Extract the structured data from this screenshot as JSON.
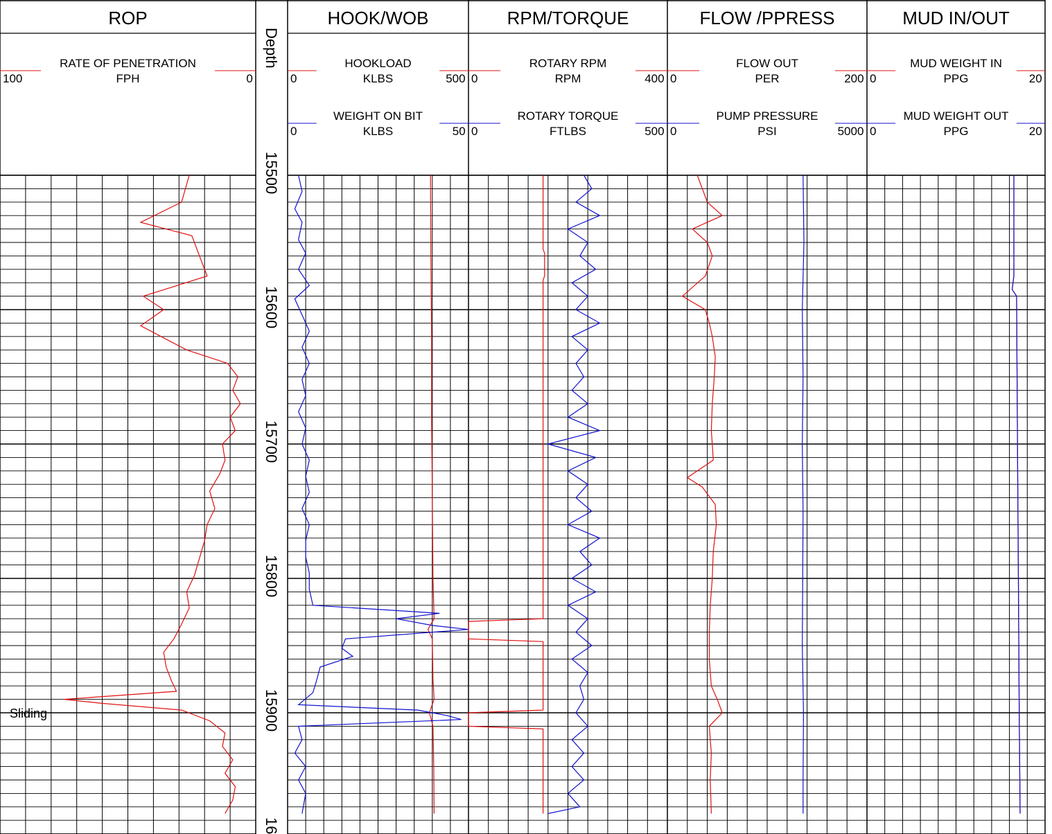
{
  "tracks": [
    {
      "title": "ROP",
      "curves": [
        {
          "name": "RATE OF PENETRATION",
          "unit": "FPH",
          "left": "100",
          "right": "0",
          "color": "#e01010"
        }
      ]
    },
    {
      "title": "HOOK/WOB",
      "curves": [
        {
          "name": "HOOKLOAD",
          "unit": "KLBS",
          "left": "0",
          "right": "500",
          "color": "#e01010"
        },
        {
          "name": "WEIGHT ON BIT",
          "unit": "KLBS",
          "left": "0",
          "right": "50",
          "color": "#1010d0"
        }
      ]
    },
    {
      "title": "RPM/TORQUE",
      "curves": [
        {
          "name": "ROTARY RPM",
          "unit": "RPM",
          "left": "0",
          "right": "400",
          "color": "#e01010"
        },
        {
          "name": "ROTARY TORQUE",
          "unit": "FTLBS",
          "left": "0",
          "right": "500",
          "color": "#1010d0"
        }
      ]
    },
    {
      "title": "FLOW /PPRESS",
      "curves": [
        {
          "name": "FLOW OUT",
          "unit": "PER",
          "left": "0",
          "right": "200",
          "color": "#e01010"
        },
        {
          "name": "PUMP PRESSURE",
          "unit": "PSI",
          "left": "0",
          "right": "5000",
          "color": "#1010d0"
        }
      ]
    },
    {
      "title": "MUD IN/OUT",
      "curves": [
        {
          "name": "MUD WEIGHT IN",
          "unit": "PPG",
          "left": "0",
          "right": "20",
          "color": "#e01010"
        },
        {
          "name": "MUD WEIGHT OUT",
          "unit": "PPG",
          "left": "0",
          "right": "20",
          "color": "#1010d0"
        }
      ]
    }
  ],
  "depth_track": {
    "title": "Depth",
    "labels": [
      "15500",
      "15600",
      "15700",
      "15800",
      "15900",
      "16"
    ]
  },
  "annotation": "Sliding",
  "chart_data": {
    "type": "line",
    "depth_axis": {
      "label": "Depth",
      "range": [
        15500,
        15975
      ],
      "major_step": 100,
      "ticks": [
        15500,
        15600,
        15700,
        15800,
        15900
      ]
    },
    "grid": true,
    "series": [
      {
        "name": "RATE OF PENETRATION",
        "unit": "FPH",
        "scale": [
          100,
          0
        ],
        "points": [
          [
            15500,
            26
          ],
          [
            15520,
            29
          ],
          [
            15535,
            45
          ],
          [
            15545,
            25
          ],
          [
            15560,
            22
          ],
          [
            15575,
            19
          ],
          [
            15590,
            44
          ],
          [
            15600,
            36
          ],
          [
            15612,
            45
          ],
          [
            15622,
            35
          ],
          [
            15630,
            27
          ],
          [
            15640,
            11
          ],
          [
            15650,
            7
          ],
          [
            15660,
            9
          ],
          [
            15670,
            6
          ],
          [
            15680,
            10
          ],
          [
            15690,
            8
          ],
          [
            15700,
            13
          ],
          [
            15712,
            12
          ],
          [
            15722,
            14
          ],
          [
            15735,
            18
          ],
          [
            15748,
            16
          ],
          [
            15760,
            19
          ],
          [
            15772,
            20
          ],
          [
            15785,
            22
          ],
          [
            15798,
            24
          ],
          [
            15810,
            27
          ],
          [
            15822,
            26
          ],
          [
            15834,
            29
          ],
          [
            15845,
            32
          ],
          [
            15855,
            36
          ],
          [
            15866,
            35
          ],
          [
            15876,
            33
          ],
          [
            15884,
            31
          ],
          [
            15890,
            75
          ],
          [
            15893,
            60
          ],
          [
            15898,
            29
          ],
          [
            15906,
            18
          ],
          [
            15915,
            12
          ],
          [
            15925,
            13
          ],
          [
            15935,
            9
          ],
          [
            15945,
            12
          ],
          [
            15955,
            8
          ],
          [
            15965,
            9
          ],
          [
            15975,
            12
          ]
        ]
      },
      {
        "name": "HOOKLOAD",
        "unit": "KLBS",
        "scale": [
          0,
          500
        ],
        "points": [
          [
            15500,
            395
          ],
          [
            15560,
            396
          ],
          [
            15620,
            398
          ],
          [
            15680,
            398
          ],
          [
            15740,
            400
          ],
          [
            15800,
            402
          ],
          [
            15830,
            405
          ],
          [
            15838,
            388
          ],
          [
            15845,
            400
          ],
          [
            15875,
            402
          ],
          [
            15890,
            405
          ],
          [
            15900,
            392
          ],
          [
            15910,
            402
          ],
          [
            15940,
            404
          ],
          [
            15975,
            405
          ]
        ]
      },
      {
        "name": "WEIGHT ON BIT",
        "unit": "KLBS",
        "scale": [
          0,
          50
        ],
        "points": [
          [
            15500,
            3
          ],
          [
            15512,
            4
          ],
          [
            15525,
            2
          ],
          [
            15535,
            4
          ],
          [
            15548,
            3
          ],
          [
            15558,
            5
          ],
          [
            15570,
            3
          ],
          [
            15582,
            6
          ],
          [
            15592,
            2
          ],
          [
            15604,
            4
          ],
          [
            15616,
            6
          ],
          [
            15628,
            4
          ],
          [
            15640,
            6
          ],
          [
            15652,
            4
          ],
          [
            15664,
            5
          ],
          [
            15676,
            3
          ],
          [
            15688,
            5
          ],
          [
            15700,
            4
          ],
          [
            15712,
            6
          ],
          [
            15724,
            5
          ],
          [
            15736,
            6
          ],
          [
            15748,
            4
          ],
          [
            15760,
            6
          ],
          [
            15772,
            5
          ],
          [
            15784,
            5
          ],
          [
            15796,
            6
          ],
          [
            15808,
            6
          ],
          [
            15820,
            7
          ],
          [
            15826,
            42
          ],
          [
            15830,
            30
          ],
          [
            15835,
            40
          ],
          [
            15838,
            50
          ],
          [
            15845,
            16
          ],
          [
            15852,
            15
          ],
          [
            15858,
            18
          ],
          [
            15866,
            9
          ],
          [
            15876,
            8
          ],
          [
            15885,
            7
          ],
          [
            15894,
            3
          ],
          [
            15898,
            36
          ],
          [
            15902,
            44
          ],
          [
            15905,
            48
          ],
          [
            15910,
            3
          ],
          [
            15920,
            4
          ],
          [
            15930,
            2
          ],
          [
            15940,
            5
          ],
          [
            15950,
            3
          ],
          [
            15960,
            5
          ],
          [
            15975,
            4
          ]
        ]
      },
      {
        "name": "ROTARY RPM",
        "unit": "RPM",
        "scale": [
          0,
          400
        ],
        "points": [
          [
            15500,
            150
          ],
          [
            15555,
            150
          ],
          [
            15558,
            153
          ],
          [
            15575,
            153
          ],
          [
            15578,
            150
          ],
          [
            15830,
            150
          ],
          [
            15832,
            0
          ],
          [
            15845,
            0
          ],
          [
            15847,
            150
          ],
          [
            15898,
            150
          ],
          [
            15900,
            0
          ],
          [
            15910,
            0
          ],
          [
            15912,
            150
          ],
          [
            15975,
            150
          ]
        ]
      },
      {
        "name": "ROTARY TORQUE",
        "unit": "FTLBS",
        "scale": [
          0,
          500
        ],
        "points": [
          [
            15500,
            290
          ],
          [
            15510,
            310
          ],
          [
            15520,
            270
          ],
          [
            15530,
            330
          ],
          [
            15540,
            250
          ],
          [
            15550,
            300
          ],
          [
            15560,
            280
          ],
          [
            15570,
            320
          ],
          [
            15580,
            260
          ],
          [
            15590,
            300
          ],
          [
            15600,
            270
          ],
          [
            15610,
            330
          ],
          [
            15620,
            260
          ],
          [
            15630,
            300
          ],
          [
            15640,
            270
          ],
          [
            15650,
            290
          ],
          [
            15660,
            260
          ],
          [
            15670,
            300
          ],
          [
            15680,
            250
          ],
          [
            15690,
            330
          ],
          [
            15700,
            200
          ],
          [
            15710,
            320
          ],
          [
            15720,
            250
          ],
          [
            15730,
            300
          ],
          [
            15740,
            270
          ],
          [
            15750,
            310
          ],
          [
            15760,
            250
          ],
          [
            15770,
            330
          ],
          [
            15780,
            280
          ],
          [
            15790,
            310
          ],
          [
            15800,
            260
          ],
          [
            15810,
            320
          ],
          [
            15820,
            250
          ],
          [
            15830,
            300
          ],
          [
            15840,
            270
          ],
          [
            15850,
            310
          ],
          [
            15860,
            260
          ],
          [
            15870,
            300
          ],
          [
            15880,
            280
          ],
          [
            15890,
            290
          ],
          [
            15900,
            270
          ],
          [
            15910,
            300
          ],
          [
            15920,
            260
          ],
          [
            15930,
            290
          ],
          [
            15940,
            260
          ],
          [
            15950,
            290
          ],
          [
            15960,
            250
          ],
          [
            15970,
            280
          ],
          [
            15975,
            200
          ]
        ]
      },
      {
        "name": "FLOW OUT",
        "unit": "PER",
        "scale": [
          0,
          200
        ],
        "points": [
          [
            15500,
            30
          ],
          [
            15520,
            40
          ],
          [
            15530,
            55
          ],
          [
            15540,
            25
          ],
          [
            15550,
            40
          ],
          [
            15560,
            45
          ],
          [
            15575,
            38
          ],
          [
            15590,
            15
          ],
          [
            15600,
            38
          ],
          [
            15610,
            42
          ],
          [
            15620,
            45
          ],
          [
            15635,
            48
          ],
          [
            15650,
            47
          ],
          [
            15670,
            45
          ],
          [
            15690,
            44
          ],
          [
            15700,
            45
          ],
          [
            15712,
            46
          ],
          [
            15725,
            20
          ],
          [
            15732,
            35
          ],
          [
            15745,
            48
          ],
          [
            15760,
            49
          ],
          [
            15780,
            46
          ],
          [
            15800,
            45
          ],
          [
            15820,
            43
          ],
          [
            15840,
            42
          ],
          [
            15860,
            42
          ],
          [
            15880,
            44
          ],
          [
            15890,
            50
          ],
          [
            15900,
            55
          ],
          [
            15910,
            42
          ],
          [
            15930,
            44
          ],
          [
            15950,
            43
          ],
          [
            15975,
            44
          ]
        ]
      },
      {
        "name": "PUMP PRESSURE",
        "unit": "PSI",
        "scale": [
          0,
          5000
        ],
        "points": [
          [
            15500,
            3400
          ],
          [
            15550,
            3420
          ],
          [
            15600,
            3380
          ],
          [
            15650,
            3400
          ],
          [
            15700,
            3380
          ],
          [
            15750,
            3400
          ],
          [
            15800,
            3390
          ],
          [
            15850,
            3380
          ],
          [
            15900,
            3410
          ],
          [
            15950,
            3400
          ],
          [
            15975,
            3400
          ]
        ]
      },
      {
        "name": "MUD WEIGHT IN",
        "unit": "PPG",
        "scale": [
          0,
          20
        ],
        "points": [
          [
            15500,
            16.5
          ],
          [
            15575,
            16.5
          ],
          [
            15585,
            16.3
          ],
          [
            15590,
            16.8
          ],
          [
            15700,
            16.9
          ],
          [
            15800,
            17.0
          ],
          [
            15900,
            17.1
          ],
          [
            15975,
            17.2
          ]
        ]
      },
      {
        "name": "MUD WEIGHT OUT",
        "unit": "PPG",
        "scale": [
          0,
          20
        ],
        "points": [
          [
            15500,
            16.5
          ],
          [
            15575,
            16.5
          ],
          [
            15585,
            16.3
          ],
          [
            15590,
            16.8
          ],
          [
            15700,
            16.9
          ],
          [
            15800,
            17.0
          ],
          [
            15900,
            17.1
          ],
          [
            15975,
            17.2
          ]
        ]
      }
    ]
  }
}
